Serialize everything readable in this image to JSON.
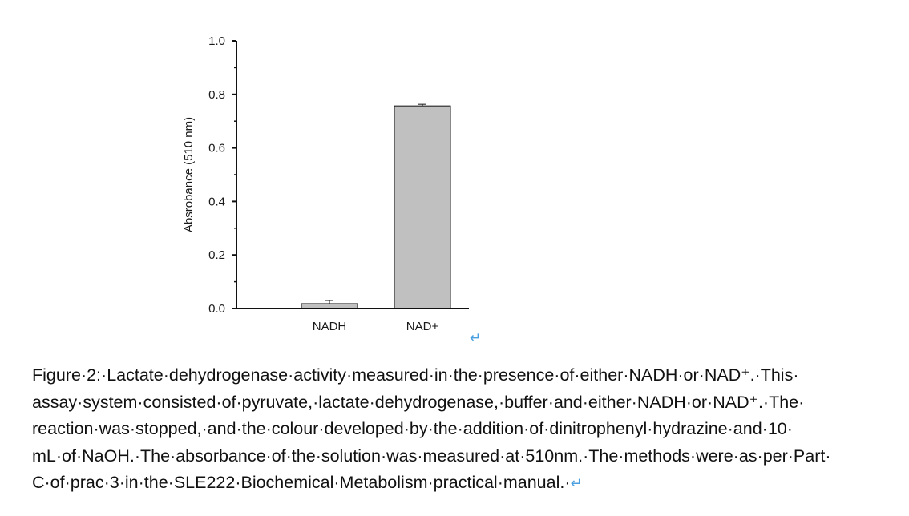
{
  "chart_data": {
    "type": "bar",
    "categories": [
      "NADH",
      "NAD+"
    ],
    "values": [
      0.018,
      0.757
    ],
    "error": [
      0.012,
      0.006
    ],
    "ylabel": "Absrobance (510 nm)",
    "ylim": [
      0,
      1.0
    ],
    "yticks": [
      "0.0",
      "0.2",
      "0.4",
      "0.6",
      "0.8",
      "1.0"
    ],
    "grid": false,
    "legend": "none",
    "bar_color": "#c0c0c0"
  },
  "caption": {
    "lines": [
      "Figure·2:·Lactate·dehydrogenase·activity·measured·in·the·presence·of·either·NADH·or·NAD⁺.·This·",
      "assay·system·consisted·of·pyruvate,·lactate·dehydrogenase,·buffer·and·either·NADH·or·NAD⁺.·The·",
      "reaction·was·stopped,·and·the·colour·developed·by·the·addition·of·dinitrophenyl·hydrazine·and·10·",
      "mL·of·NaOH.·The·absorbance·of·the·solution·was·measured·at·510nm.·The·methods·were·as·per·Part·",
      "C·of·prac·3·in·the·SLE222·Biochemical·Metabolism·practical·manual.·"
    ],
    "para_mark": "↵"
  }
}
